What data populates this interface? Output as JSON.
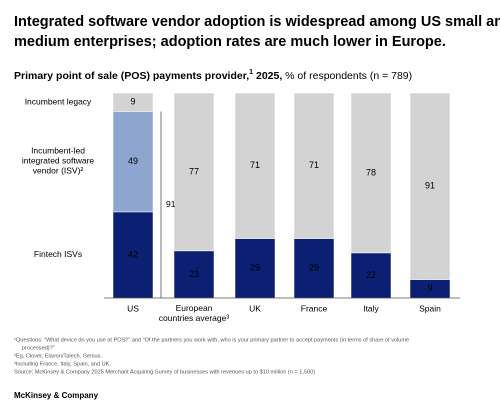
{
  "chart_data": {
    "type": "stacked_bar",
    "title": "Integrated software vendor adoption is widespread among US small and medium enterprises; adoption rates are much lower in Europe.",
    "subtitle": "Primary point of sale (POS) payments provider,",
    "subtitle_note": "1",
    "subtitle_year": " 2025,",
    "subtitle_unit": " % of respondents (n = 789)",
    "categories": [
      "US",
      "European countries average³",
      "UK",
      "France",
      "Italy",
      "Spain"
    ],
    "series": [
      {
        "name": "Fintech ISVs",
        "color": "#0b1f73",
        "values": [
          42,
          23,
          29,
          29,
          22,
          9
        ]
      },
      {
        "name": "Incumbent-led integrated software vendor (ISV)²",
        "color": "#8ea5cf",
        "values": [
          49,
          null,
          null,
          null,
          null,
          null
        ]
      },
      {
        "name": "Incumbent legacy",
        "color": "#d3d3d3",
        "values": [
          9,
          77,
          71,
          71,
          78,
          91
        ]
      }
    ],
    "ylim": [
      0,
      100
    ],
    "bracket_total": 91,
    "footnotes": [
      "¹Questions: “What device do you use at POS?” and “Of the partners you work with, who is your primary partner to accept payments (in terms of share of volume",
      "processed)?”",
      "²Eg, Clover, Elavon/Talech, Genius.",
      "³Including France, Italy, Spain, and UK.",
      "Source: McKinsey & Company 2025 Merchant Acquiring Survey of businesses with revenues up to $10 million (n = 1,500)"
    ],
    "brand": "McKinsey & Company"
  }
}
